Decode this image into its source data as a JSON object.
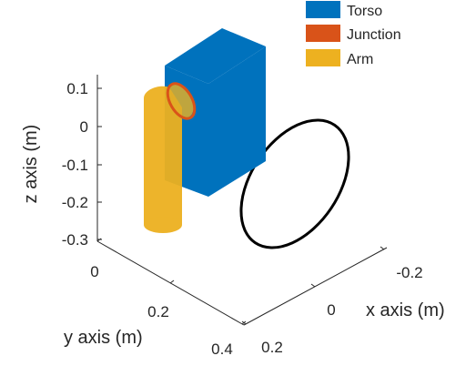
{
  "chart_data": {
    "type": "3d-surface",
    "title": "",
    "xlabel": "x axis (m)",
    "ylabel": "y axis (m)",
    "zlabel": "z axis (m)",
    "x_ticks": [
      "-0.2",
      "0",
      "0.2"
    ],
    "y_ticks": [
      "0",
      "0.2",
      "0.4"
    ],
    "z_ticks": [
      "0.1",
      "0",
      "-0.1",
      "-0.2",
      "-0.3"
    ],
    "grid": false,
    "legend_position": "top-right",
    "legend": [
      {
        "name": "Torso",
        "color": "#0072BD"
      },
      {
        "name": "Junction",
        "color": "#D95319"
      },
      {
        "name": "Arm",
        "color": "#EDB120"
      }
    ],
    "objects": [
      {
        "name": "Torso",
        "shape": "box",
        "color": "#0072BD"
      },
      {
        "name": "Junction",
        "shape": "disk",
        "color": "#D95319"
      },
      {
        "name": "Arm",
        "shape": "cylinder",
        "color": "#EDB120"
      },
      {
        "name": "",
        "shape": "circle-outline",
        "color": "#000000"
      }
    ]
  }
}
